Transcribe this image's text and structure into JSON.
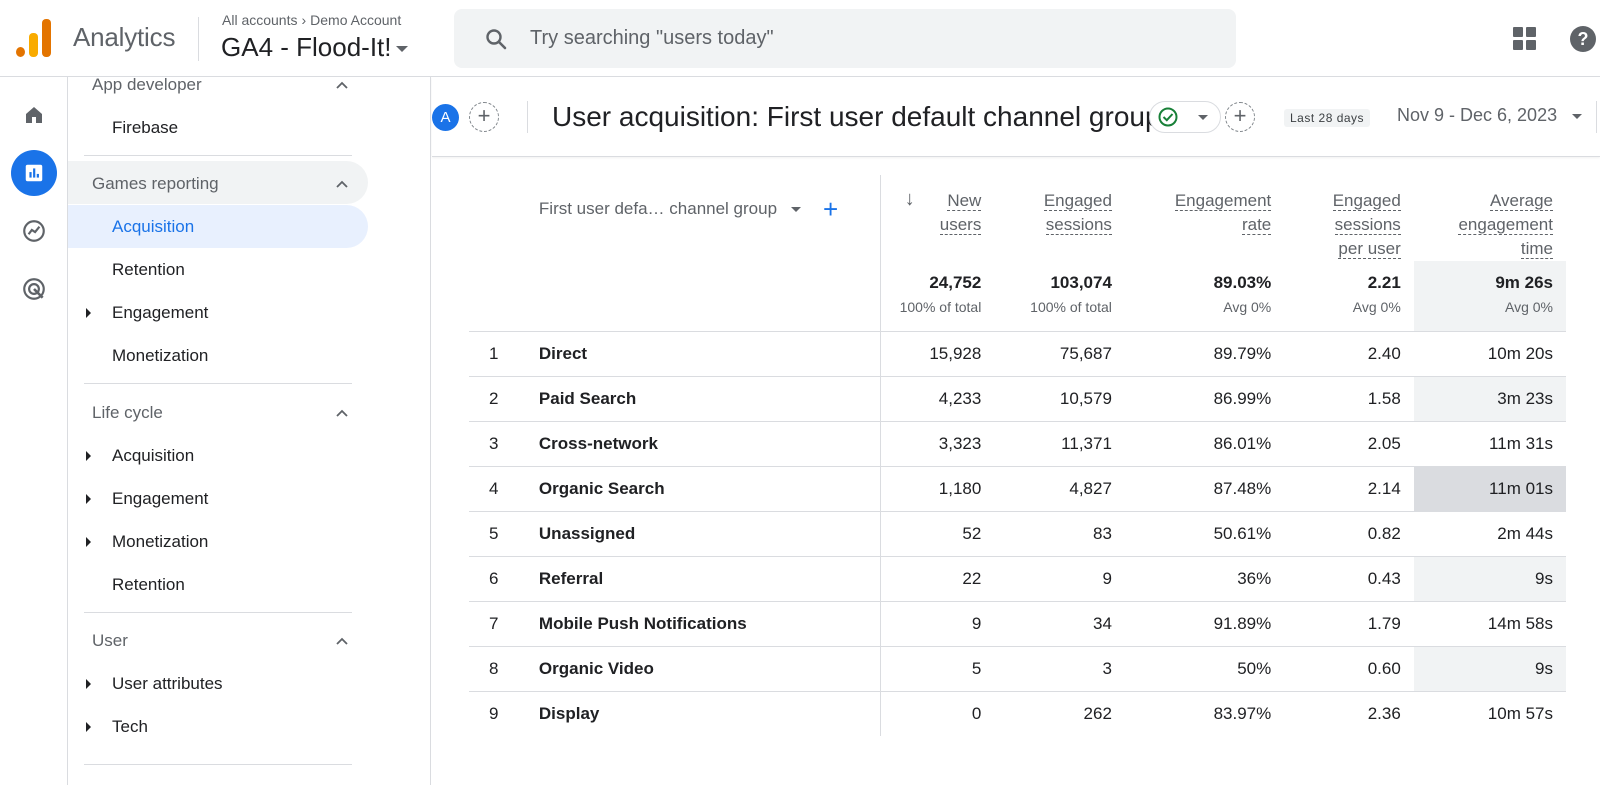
{
  "topbar": {
    "app_name": "Analytics",
    "breadcrumb_all": "All accounts",
    "breadcrumb_account": "Demo Account",
    "property": "GA4 - Flood-It!",
    "search_placeholder": "Try searching \"users today\"",
    "help_glyph": "?"
  },
  "nav": {
    "sections": [
      {
        "label": "App developer",
        "items": [
          "Firebase"
        ]
      },
      {
        "label": "Games reporting",
        "items": [
          "Acquisition",
          "Retention",
          "Engagement",
          "Monetization"
        ]
      },
      {
        "label": "Life cycle",
        "items": [
          "Acquisition",
          "Engagement",
          "Monetization",
          "Retention"
        ]
      },
      {
        "label": "User",
        "items": [
          "User attributes",
          "Tech"
        ]
      }
    ]
  },
  "header": {
    "avatar": "A",
    "plus": "+",
    "title": "User acquisition: First user default channel group",
    "date_chip": "Last 28 days",
    "date_range": "Nov 9 - Dec 6, 2023"
  },
  "table": {
    "dimension_header": "First user defa… channel group",
    "add_glyph": "+",
    "sort_glyph": "↓",
    "columns": [
      {
        "lines": [
          "New",
          "users"
        ],
        "total": "24,752",
        "sub": "100% of total"
      },
      {
        "lines": [
          "Engaged",
          "sessions"
        ],
        "total": "103,074",
        "sub": "100% of total"
      },
      {
        "lines": [
          "Engagement",
          "rate"
        ],
        "total": "89.03%",
        "sub": "Avg 0%"
      },
      {
        "lines": [
          "Engaged",
          "sessions",
          "per user"
        ],
        "total": "2.21",
        "sub": "Avg 0%"
      },
      {
        "lines": [
          "Average",
          "engagement",
          "time"
        ],
        "total": "9m 26s",
        "sub": "Avg 0%"
      }
    ],
    "rows": [
      {
        "n": "1",
        "name": "Direct",
        "v": [
          "15,928",
          "75,687",
          "89.79%",
          "2.40",
          "10m 20s"
        ]
      },
      {
        "n": "2",
        "name": "Paid Search",
        "v": [
          "4,233",
          "10,579",
          "86.99%",
          "1.58",
          "3m 23s"
        ]
      },
      {
        "n": "3",
        "name": "Cross-network",
        "v": [
          "3,323",
          "11,371",
          "86.01%",
          "2.05",
          "11m 31s"
        ]
      },
      {
        "n": "4",
        "name": "Organic Search",
        "v": [
          "1,180",
          "4,827",
          "87.48%",
          "2.14",
          "11m 01s"
        ]
      },
      {
        "n": "5",
        "name": "Unassigned",
        "v": [
          "52",
          "83",
          "50.61%",
          "0.82",
          "2m 44s"
        ]
      },
      {
        "n": "6",
        "name": "Referral",
        "v": [
          "22",
          "9",
          "36%",
          "0.43",
          "9s"
        ]
      },
      {
        "n": "7",
        "name": "Mobile Push Notifications",
        "v": [
          "9",
          "34",
          "91.89%",
          "1.79",
          "14m 58s"
        ]
      },
      {
        "n": "8",
        "name": "Organic Video",
        "v": [
          "5",
          "3",
          "50%",
          "0.60",
          "9s"
        ]
      },
      {
        "n": "9",
        "name": "Display",
        "v": [
          "0",
          "262",
          "83.97%",
          "2.36",
          "10m 57s"
        ]
      }
    ]
  },
  "colors": {
    "accent": "#1a73e8",
    "selected_bg": "#e8f0fe",
    "highlight_cell": "#dadce0"
  }
}
